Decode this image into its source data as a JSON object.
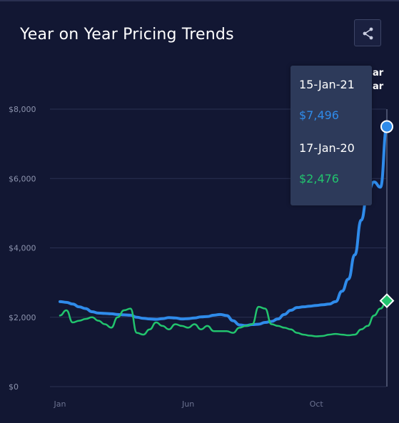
{
  "header": {
    "title": "Year on Year Pricing Trends",
    "share_icon": "share-icon"
  },
  "legend_fragments": [
    "ar",
    "ar"
  ],
  "tooltip": {
    "date1": "15-Jan-21",
    "value1": "$7,496",
    "date2": "17-Jan-20",
    "value2": "$2,476"
  },
  "colors": {
    "series1": "#2f8bea",
    "series2": "#22c46e",
    "background": "#121733",
    "tooltip_bg": "#2d3a5a"
  },
  "chart_data": {
    "type": "line",
    "title": "Year on Year Pricing Trends",
    "y_ticks": [
      "$0",
      "$2,000",
      "$4,000",
      "$6,000",
      "$8,000"
    ],
    "x_ticks": [
      "Jan",
      "Jun",
      "Oct"
    ],
    "ylim": [
      0,
      8000
    ],
    "grid": true,
    "x_domain": [
      0,
      51
    ],
    "x_tick_positions": [
      0,
      20,
      40
    ],
    "series": [
      {
        "color": "#2f8bea",
        "x": [
          0,
          1,
          2,
          3,
          4,
          5,
          6,
          7,
          8,
          9,
          10,
          11,
          12,
          13,
          14,
          15,
          16,
          17,
          18,
          19,
          20,
          21,
          22,
          23,
          24,
          25,
          26,
          27,
          28,
          29,
          30,
          31,
          32,
          33,
          34,
          35,
          36,
          37,
          38,
          39,
          40,
          41,
          42,
          43,
          44,
          45,
          46,
          47,
          48,
          49,
          50,
          51
        ],
        "values": [
          2450,
          2430,
          2380,
          2300,
          2250,
          2160,
          2120,
          2110,
          2100,
          2080,
          2070,
          2060,
          2000,
          1970,
          1950,
          1940,
          1960,
          1990,
          1980,
          1950,
          1960,
          1980,
          2010,
          2020,
          2060,
          2080,
          2050,
          1900,
          1780,
          1760,
          1790,
          1800,
          1850,
          1880,
          1950,
          2080,
          2200,
          2280,
          2300,
          2320,
          2340,
          2360,
          2380,
          2450,
          2750,
          3100,
          3800,
          4800,
          5600,
          5900,
          5750,
          7496
        ]
      },
      {
        "color": "#22c46e",
        "x": [
          0,
          1,
          2,
          3,
          4,
          5,
          6,
          7,
          8,
          9,
          10,
          11,
          12,
          13,
          14,
          15,
          16,
          17,
          18,
          19,
          20,
          21,
          22,
          23,
          24,
          25,
          26,
          27,
          28,
          29,
          30,
          31,
          32,
          33,
          34,
          35,
          36,
          37,
          38,
          39,
          40,
          41,
          42,
          43,
          44,
          45,
          46,
          47,
          48,
          49,
          50,
          51
        ],
        "values": [
          2050,
          2200,
          1850,
          1900,
          1950,
          2000,
          1900,
          1800,
          1700,
          2000,
          2200,
          2250,
          1550,
          1500,
          1650,
          1850,
          1750,
          1650,
          1800,
          1750,
          1700,
          1800,
          1650,
          1750,
          1600,
          1600,
          1600,
          1550,
          1700,
          1750,
          1800,
          2300,
          2250,
          1800,
          1750,
          1700,
          1650,
          1550,
          1500,
          1470,
          1450,
          1460,
          1500,
          1520,
          1500,
          1480,
          1500,
          1650,
          1750,
          2050,
          2250,
          2476
        ]
      }
    ]
  }
}
